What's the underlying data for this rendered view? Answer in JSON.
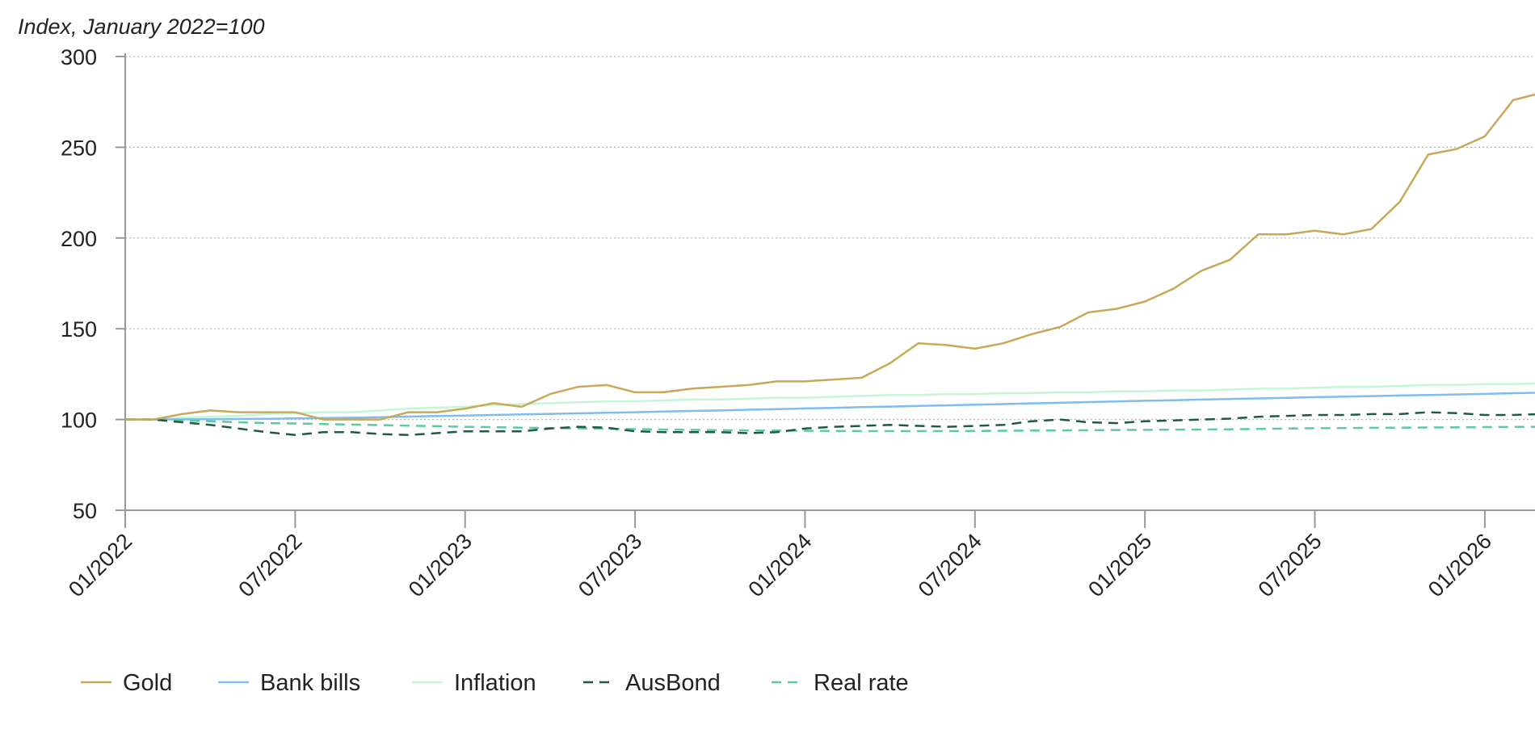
{
  "chart_data": {
    "type": "line",
    "ylabel": "Index, January 2022=100",
    "y_ticks": [
      "300",
      "250",
      "200",
      "150",
      "100",
      "50"
    ],
    "y_tick_values": [
      300,
      250,
      200,
      150,
      100,
      50
    ],
    "ylim": [
      50,
      300
    ],
    "x_ticks": [
      "01/2022",
      "07/2022",
      "01/2023",
      "07/2023",
      "01/2024",
      "07/2024",
      "01/2025",
      "07/2025",
      "01/2026"
    ],
    "x_tick_dates": [
      "2022-01",
      "2022-07",
      "2023-01",
      "2023-07",
      "2024-01",
      "2024-07",
      "2025-01",
      "2025-07",
      "2026-01"
    ],
    "xlim": [
      "2022-01",
      "2026-03"
    ],
    "grid": true,
    "legend_position": "bottom-left",
    "dates": [
      "2022-02",
      "2022-03",
      "2022-04",
      "2022-05",
      "2022-06",
      "2022-07",
      "2022-08",
      "2022-09",
      "2022-10",
      "2022-11",
      "2022-12",
      "2023-01",
      "2023-02",
      "2023-03",
      "2023-04",
      "2023-05",
      "2023-06",
      "2023-07",
      "2023-08",
      "2023-09",
      "2023-10",
      "2023-11",
      "2023-12",
      "2024-01",
      "2024-02",
      "2024-03",
      "2024-04",
      "2024-05",
      "2024-06",
      "2024-07",
      "2024-08",
      "2024-09",
      "2024-10",
      "2024-11",
      "2024-12",
      "2025-01",
      "2025-02",
      "2025-03",
      "2025-04",
      "2025-05",
      "2025-06",
      "2025-07",
      "2025-08",
      "2025-09",
      "2025-10",
      "2025-11",
      "2025-12",
      "2026-01",
      "2026-02",
      "2026-03"
    ],
    "series": [
      {
        "name": "Gold",
        "color": "#c9a85a",
        "dash": "solid",
        "values": [
          100,
          103,
          105,
          104,
          104,
          104,
          100,
          100,
          100,
          104,
          104,
          106,
          109,
          107,
          114,
          118,
          119,
          115,
          115,
          117,
          118,
          119,
          121,
          121,
          122,
          123,
          131,
          142,
          141,
          139,
          142,
          147,
          151,
          159,
          161,
          165,
          172,
          182,
          188,
          202,
          202,
          204,
          202,
          205,
          220,
          246,
          249,
          256,
          276,
          280
        ]
      },
      {
        "name": "Bank bills",
        "color": "#7fbcf0",
        "dash": "solid",
        "values": [
          100,
          100.1,
          100.2,
          100.3,
          100.4,
          100.6,
          100.8,
          101.0,
          101.3,
          101.6,
          101.9,
          102.2,
          102.5,
          102.8,
          103.1,
          103.4,
          103.7,
          104.0,
          104.4,
          104.7,
          105.0,
          105.4,
          105.7,
          106.1,
          106.4,
          106.8,
          107.1,
          107.5,
          107.8,
          108.2,
          108.5,
          108.9,
          109.2,
          109.6,
          109.9,
          110.3,
          110.6,
          111.0,
          111.3,
          111.6,
          111.9,
          112.3,
          112.6,
          112.9,
          113.2,
          113.5,
          113.8,
          114.1,
          114.5,
          114.8
        ]
      },
      {
        "name": "Inflation",
        "color": "#c3f5d6",
        "dash": "solid",
        "values": [
          100,
          101,
          101.5,
          102,
          103,
          103.5,
          104,
          104,
          105,
          106,
          106.5,
          107,
          108,
          108.5,
          109,
          109.5,
          110,
          110,
          110.5,
          111,
          111,
          111.5,
          112,
          112,
          112.5,
          113,
          113.5,
          113.5,
          114,
          114,
          114.5,
          114.5,
          115,
          115,
          115.5,
          115.5,
          116,
          116,
          116.5,
          117,
          117,
          117.5,
          118,
          118,
          118.5,
          119,
          119,
          119.5,
          119.5,
          120
        ]
      },
      {
        "name": "AusBond",
        "color": "#1f5a47",
        "dash": "dashed",
        "values": [
          100,
          98.5,
          97,
          95,
          93,
          91.5,
          93,
          93,
          92,
          91.5,
          92.5,
          93.5,
          93.5,
          93.5,
          95,
          96,
          95.5,
          93.5,
          93,
          93,
          93,
          92.5,
          93,
          95,
          96,
          96.5,
          97,
          96.5,
          96,
          96.5,
          97,
          99,
          100,
          98.5,
          98,
          99,
          99.5,
          100,
          100.5,
          101.5,
          102,
          102.5,
          102.5,
          103,
          103,
          104,
          103.5,
          102.5,
          102.5,
          103
        ]
      },
      {
        "name": "Real rate",
        "color": "#5ccb9e",
        "dash": "dashed",
        "values": [
          100,
          99.5,
          99,
          98.5,
          98,
          97.8,
          97.5,
          97.2,
          96.9,
          96.6,
          96.3,
          96.0,
          95.8,
          95.5,
          95.3,
          95.1,
          94.9,
          94.7,
          94.5,
          94.3,
          94.1,
          94.0,
          93.9,
          93.8,
          93.7,
          93.6,
          93.6,
          93.6,
          93.6,
          93.7,
          93.8,
          93.9,
          94.0,
          94.1,
          94.2,
          94.3,
          94.4,
          94.5,
          94.6,
          94.8,
          95.0,
          95.2,
          95.3,
          95.4,
          95.5,
          95.6,
          95.7,
          95.8,
          95.9,
          96.0
        ]
      }
    ]
  }
}
